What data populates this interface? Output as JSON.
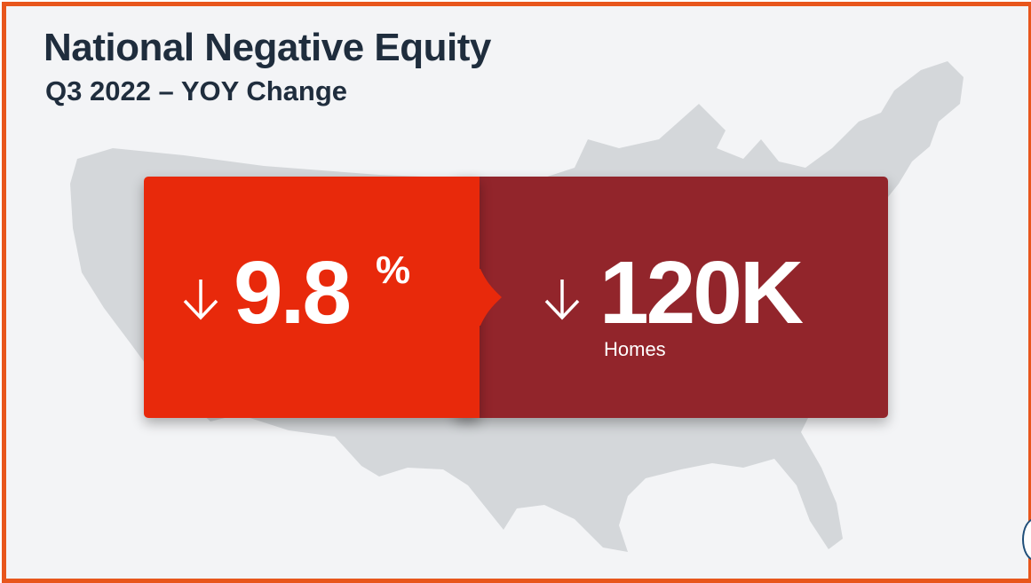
{
  "slide": {
    "title": "National Negative Equity",
    "subtitle": "Q3 2022 – YOY Change"
  },
  "stats": {
    "percent_change": {
      "value": "9.8",
      "unit": "%",
      "direction_icon": "down-arrow-icon"
    },
    "homes_change": {
      "value": "120K",
      "label": "Homes",
      "direction_icon": "down-arrow-icon"
    }
  },
  "colors": {
    "border": "#e8561c",
    "background": "#f3f4f6",
    "map": "#d4d7da",
    "title_text": "#1f2d3d",
    "card_red": "#e8290b",
    "card_dark_red": "#92252b"
  }
}
